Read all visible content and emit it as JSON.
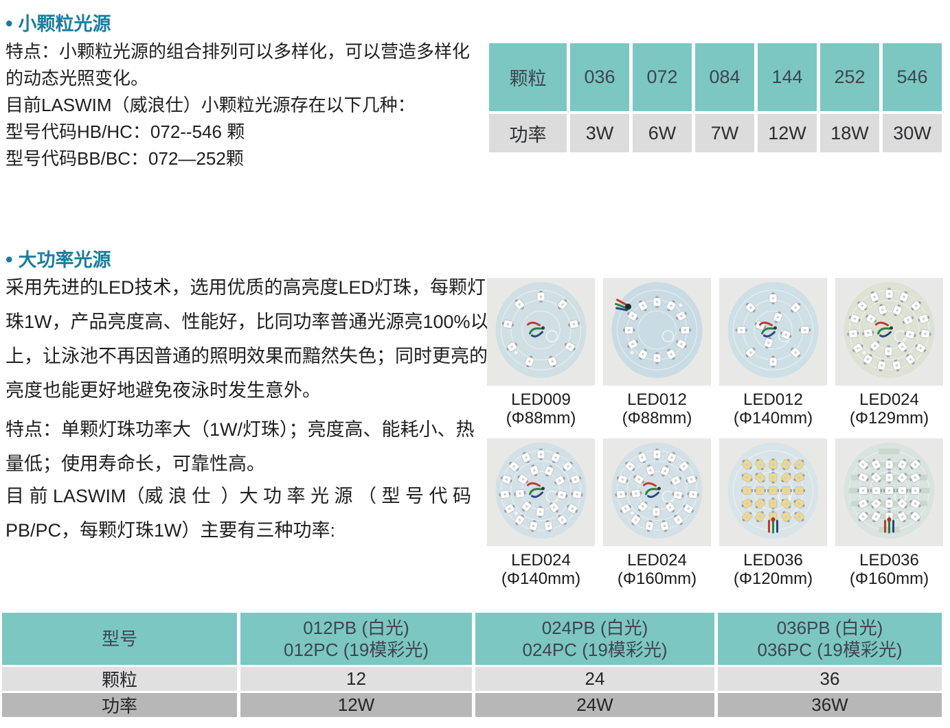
{
  "colors": {
    "accent_teal": "#7cc7c2",
    "title_teal": "#187d9e",
    "row_light_gray": "#e0e0e0",
    "row_dark_gray": "#b7b7b7",
    "table_header_gray": "#dcdcdc"
  },
  "section_small": {
    "bullet": "•",
    "title": "小颗粒光源",
    "lines": [
      "特点：小颗粒光源的组合排列可以多样化，可以营造多样化",
      "的动态光照变化。",
      "目前LASWIM（威浪仕）小颗粒光源存在以下几种：",
      "型号代码HB/HC：072--546 颗",
      "型号代码BB/BC：072—252颗"
    ],
    "table": {
      "row1_label": "颗粒",
      "row1_values": [
        "036",
        "072",
        "084",
        "144",
        "252",
        "546"
      ],
      "row2_label": "功率",
      "row2_values": [
        "3W",
        "6W",
        "7W",
        "12W",
        "18W",
        "30W"
      ]
    }
  },
  "section_power": {
    "bullet": "•",
    "title": "大功率光源",
    "para1": [
      "采用先进的LED技术，选用优质的高亮度LED灯珠，每颗灯",
      "珠1W，产品亮度高、性能好，比同功率普通光源亮100%以",
      "上，让泳池不再因普通的照明效果而黯然失色；同时更亮的",
      "亮度也能更好地避免夜泳时发生意外。"
    ],
    "para2": [
      "特点：单颗灯珠功率大（1W/灯珠）；亮度高、能耗小、热",
      "量低；使用寿命长，可靠性高。"
    ],
    "para3": [
      "目 前 LASWIM（威 浪 仕  ）大 功 率 光 源 （ 型 号 代 码",
      "PB/PC，每颗灯珠1W）主要有三种功率:"
    ],
    "products": [
      {
        "model": "LED009",
        "size": "(Φ88mm)",
        "count": 9,
        "layout": "ring",
        "wires": "center",
        "pcb": "#cfdfe4",
        "led": "#ffffff"
      },
      {
        "model": "LED012",
        "size": "(Φ88mm)",
        "count": 12,
        "layout": "ring-tight",
        "wires": "top-left",
        "pcb": "#c9dce3",
        "led": "#ffffff"
      },
      {
        "model": "LED012",
        "size": "(Φ140mm)",
        "count": 12,
        "layout": "sparse",
        "wires": "center",
        "pcb": "#cedfe6",
        "led": "#ffffff"
      },
      {
        "model": "LED024",
        "size": "(Φ129mm)",
        "count": 24,
        "layout": "double-ring",
        "wires": "center",
        "pcb": "#dde2d4",
        "led": "#ffffff"
      },
      {
        "model": "LED024",
        "size": "(Φ140mm)",
        "count": 24,
        "layout": "double-ring",
        "wires": "center",
        "pcb": "#d3e1e6",
        "led": "#ffffff"
      },
      {
        "model": "LED024",
        "size": "(Φ160mm)",
        "count": 24,
        "layout": "double-ring",
        "wires": "center",
        "pcb": "#d3e1e6",
        "led": "#ffffff"
      },
      {
        "model": "LED036",
        "size": "(Φ120mm)",
        "count": 36,
        "layout": "columns",
        "wires": "bottom",
        "pcb": "#d8e4e7",
        "led": "#f0d88a"
      },
      {
        "model": "LED036",
        "size": "(Φ160mm)",
        "count": 36,
        "layout": "rows",
        "wires": "bottom",
        "pcb": "#d9e3e0",
        "led": "#ffffff"
      }
    ],
    "table": {
      "col1_header": "型号",
      "row2_label": "颗粒",
      "row3_label": "功率",
      "columns": [
        {
          "h1": "012PB (白光)",
          "h2": "012PC (19模彩光)",
          "particles": "12",
          "power": "12W"
        },
        {
          "h1": "024PB (白光)",
          "h2": "024PC (19模彩光)",
          "particles": "24",
          "power": "24W"
        },
        {
          "h1": "036PB (白光)",
          "h2": "036PC (19模彩光)",
          "particles": "36",
          "power": "36W"
        }
      ]
    }
  }
}
